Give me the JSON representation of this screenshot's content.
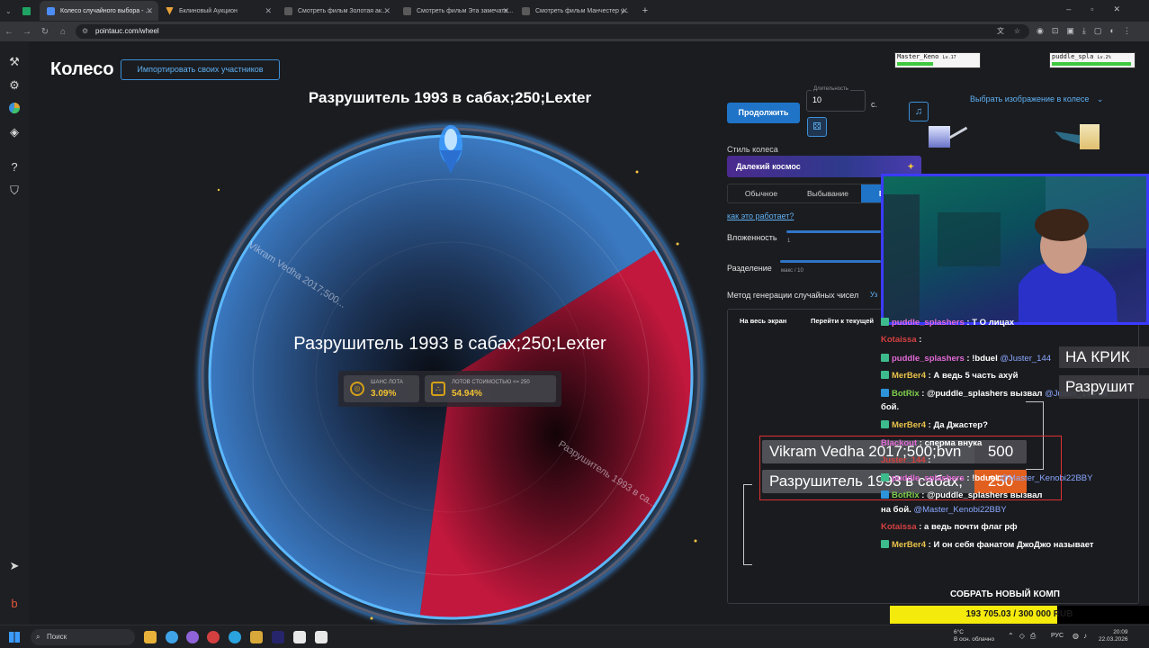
{
  "browser": {
    "tabs": [
      {
        "label": "Колесо случайного выбора - ...",
        "color": "#4b8cf5",
        "active": true
      },
      {
        "label": "Аукцион",
        "color": "#e8a33a",
        "active": false
      },
      {
        "label": "Смотреть фильм Золотая ак...",
        "color": "#8a8a8a",
        "active": false
      },
      {
        "label": "Смотреть фильм Эта замечате...",
        "color": "#8a8a8a",
        "active": false
      },
      {
        "label": "Смотреть фильм Манчестер у...",
        "color": "#8a8a8a",
        "active": false
      }
    ],
    "tab_prefix_2": "Бклиновый Аукцион",
    "url": "pointauc.com/wheel"
  },
  "page": {
    "title": "Колесо",
    "import_button": "Импортировать своих участников",
    "winner_title": "Разрушитель 1993 в сабах;250;Lexter"
  },
  "wheel": {
    "center_text": "Разрушитель 1993 в сабах;250;Lexter",
    "segments": [
      {
        "label": "Разрушитель 1993 в са...",
        "color": "#b3183a",
        "fraction": 0.3594
      },
      {
        "label": "Vikram Vedha 2017;500...",
        "color": "#2a5f9e",
        "fraction": 0.6406
      }
    ],
    "chip_chance_label": "ШАНС ЛОТА",
    "chip_chance_value": "3.09%",
    "chip_lots_label": "ЛОТОВ СТОИМОСТЬЮ <= 250",
    "chip_lots_value": "54.94%"
  },
  "controls": {
    "continue_button": "Продолжить",
    "duration_label": "Длительность",
    "duration_value": "10",
    "seconds_label": "с.",
    "choose_image": "Выбрать изображение в колесе",
    "style_label": "Стиль колеса",
    "style_value": "Далекий космос",
    "modes": [
      "Обычное",
      "Выбывание",
      "Батл"
    ],
    "how_link": "как это работает?",
    "nesting_label": "Вложенность",
    "nesting_sub": "1",
    "split_label": "Разделение",
    "split_sub": "макс / 10",
    "rng_label": "Метод генерации случайных чисел",
    "rng_more": "Уз",
    "full_screen": "На весь экран",
    "goto_current": "Перейти к текущей"
  },
  "battle": {
    "row1_name": "Vikram Vedha 2017;500;bvn",
    "row1_score": "500",
    "row2_name": "Разрушитель 1993 в сабах;",
    "row2_score": "250",
    "krik": "НА КРИК",
    "razr": "Разрушит"
  },
  "chat": [
    {
      "user": "puddle_splashers",
      "text": ": Т О лицах",
      "cls": "u-pink",
      "badge": "b1"
    },
    {
      "user": "Kotaissa",
      "text": ":",
      "cls": "u-red",
      "badge": "none"
    },
    {
      "user": "puddle_splashers",
      "text": ": !bduel",
      "mention": "@Juster_144",
      "cls": "u-pink",
      "badge": "b1"
    },
    {
      "user": "MerBer4",
      "text": ": А ведь 5 часть ахуй",
      "cls": "u-gold",
      "badge": "b1"
    },
    {
      "user": "BotRix",
      "text": ": @puddle_splashers вызвал",
      "mention": "@Juster_144 на",
      "cls": "u-green",
      "badge": "b2"
    },
    {
      "user": "",
      "text": "бой.",
      "cls": "",
      "badge": "none"
    },
    {
      "user": "MerBer4",
      "text": ": Да Джастер?",
      "cls": "u-gold",
      "badge": "b1"
    },
    {
      "user": "Blackout",
      "text": ": сперма внука",
      "cls": "u-pink",
      "badge": "none"
    },
    {
      "user": "Juster_144",
      "text": ":",
      "cls": "u-red",
      "badge": "none"
    },
    {
      "user": "puddle_splashers",
      "text": ": !bduel",
      "mention": "@Master_Kenobi22BBY",
      "cls": "u-pink",
      "badge": "b1"
    },
    {
      "user": "BotRix",
      "text": ": @puddle_splashers вызвал",
      "cls": "u-green",
      "badge": "b2"
    },
    {
      "user": "",
      "text": "на бой.",
      "mention": "@Master_Kenobi22BBY",
      "cls": "",
      "badge": "none"
    },
    {
      "user": "Kotaissa",
      "text": ": а ведь почти флаг рф",
      "cls": "u-red",
      "badge": "none"
    },
    {
      "user": "MerBer4",
      "text": ": И он себя фанатом ДжоДжо называет",
      "cls": "u-gold",
      "badge": "b1"
    }
  ],
  "donation": {
    "title": "СОБРАТЬ НОВЫЙ КОМП",
    "progress_text": "193 705.03 / 300 000 RUB",
    "progress_fraction": 0.6457
  },
  "game": {
    "player1": "Master_Keno",
    "player1_level": "Lv.17",
    "player2": "puddle_spla",
    "player2_level": "Lv.2%"
  },
  "taskbar": {
    "search_placeholder": "Поиск",
    "weather_temp": "6°C",
    "weather_desc": "В осн. облачно",
    "language": "РУС",
    "time": "20:09",
    "date": "22.03.2026"
  }
}
